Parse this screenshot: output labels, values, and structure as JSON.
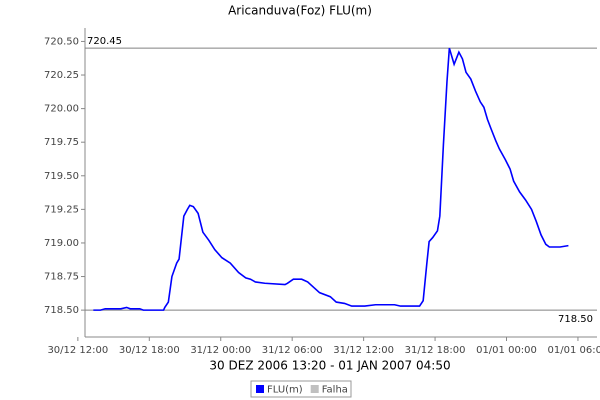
{
  "chart_data": {
    "type": "line",
    "title": "Aricanduva(Foz) FLU(m)",
    "x_label": "30 DEZ 2006 13:20 - 01 JAN 2007 04:50",
    "x": [
      13.3,
      13.9,
      14.3,
      15.6,
      16.1,
      16.4,
      17.2,
      17.5,
      19.2,
      19.3,
      19.6,
      19.9,
      20.3,
      20.5,
      20.9,
      21.2,
      21.4,
      21.7,
      22.1,
      22.5,
      23.0,
      23.5,
      24.1,
      24.8,
      25.5,
      26.1,
      26.5,
      26.9,
      27.7,
      29.4,
      29.6,
      30.1,
      30.8,
      31.3,
      31.8,
      32.3,
      33.2,
      33.7,
      34.4,
      35.0,
      36.1,
      37.0,
      38.6,
      39.1,
      40.7,
      41.0,
      41.3,
      41.5,
      41.8,
      42.2,
      42.4,
      42.7,
      43.0,
      43.2,
      43.3,
      43.6,
      44.0,
      44.3,
      44.6,
      45.0,
      45.4,
      45.8,
      46.1,
      46.4,
      46.7,
      47.1,
      47.4,
      47.9,
      48.3,
      48.6,
      49.1,
      49.6,
      50.1,
      50.5,
      50.9,
      51.3,
      51.6,
      52.5,
      53.2
    ],
    "series": [
      {
        "name": "FLU(m)",
        "color": "#0000ff",
        "values": [
          718.5,
          718.5,
          718.51,
          718.51,
          718.52,
          718.51,
          718.51,
          718.5,
          718.5,
          718.52,
          718.56,
          718.75,
          718.85,
          718.88,
          719.2,
          719.25,
          719.28,
          719.27,
          719.22,
          719.08,
          719.02,
          718.95,
          718.89,
          718.85,
          718.78,
          718.74,
          718.73,
          718.71,
          718.7,
          718.69,
          718.7,
          718.73,
          718.73,
          718.71,
          718.67,
          718.63,
          718.6,
          718.56,
          718.55,
          718.53,
          718.53,
          718.54,
          718.54,
          718.53,
          718.53,
          718.57,
          718.84,
          719.01,
          719.04,
          719.09,
          719.2,
          719.73,
          720.2,
          720.45,
          720.42,
          720.33,
          720.42,
          720.37,
          720.27,
          720.22,
          720.13,
          720.05,
          720.01,
          719.92,
          719.85,
          719.76,
          719.7,
          719.62,
          719.55,
          719.46,
          719.38,
          719.32,
          719.25,
          719.16,
          719.06,
          718.99,
          718.97,
          718.97,
          718.98
        ]
      },
      {
        "name": "Falha",
        "color": "#c0c0c0",
        "values": [
          null,
          null,
          null,
          null,
          null,
          null,
          null,
          null,
          null,
          null,
          null,
          null,
          null,
          null,
          null,
          null,
          null,
          null,
          null,
          null,
          null,
          null,
          null,
          null,
          null,
          null,
          null,
          null,
          null,
          null,
          null,
          null,
          null,
          null,
          null,
          null,
          null,
          null,
          null,
          null,
          null,
          null,
          null,
          null,
          null,
          null,
          null,
          null,
          null,
          null,
          null,
          null,
          null,
          null,
          null,
          null,
          null,
          null,
          null,
          null,
          null,
          null,
          null,
          null,
          null,
          null,
          null,
          null,
          null,
          null,
          null,
          null,
          null,
          null,
          null,
          null,
          null,
          null,
          null
        ]
      }
    ],
    "xlim": [
      12.6,
      55.6
    ],
    "xticks": [
      {
        "value": 12,
        "label": "30/12 12:00"
      },
      {
        "value": 18,
        "label": "30/12 18:00"
      },
      {
        "value": 24,
        "label": "31/12 00:00"
      },
      {
        "value": 30,
        "label": "31/12 06:00"
      },
      {
        "value": 36,
        "label": "31/12 12:00"
      },
      {
        "value": 42,
        "label": "31/12 18:00"
      },
      {
        "value": 48,
        "label": "01/01 00:00"
      },
      {
        "value": 54,
        "label": "01/01 06:00"
      }
    ],
    "ylim": [
      718.3,
      720.6
    ],
    "yticks": [
      {
        "value": 718.5,
        "label": "718.50"
      },
      {
        "value": 718.75,
        "label": "718.75"
      },
      {
        "value": 719,
        "label": "719.00"
      },
      {
        "value": 719.25,
        "label": "719.25"
      },
      {
        "value": 719.5,
        "label": "719.50"
      },
      {
        "value": 719.75,
        "label": "719.75"
      },
      {
        "value": 720,
        "label": "720.00"
      },
      {
        "value": 720.25,
        "label": "720.25"
      },
      {
        "value": 720.5,
        "label": "720.50"
      }
    ],
    "markers": [
      {
        "value": 720.45,
        "label": "720.45",
        "corner": "top-left"
      },
      {
        "value": 718.5,
        "label": "718.50",
        "corner": "bottom-right"
      }
    ],
    "legend": "bottom"
  }
}
